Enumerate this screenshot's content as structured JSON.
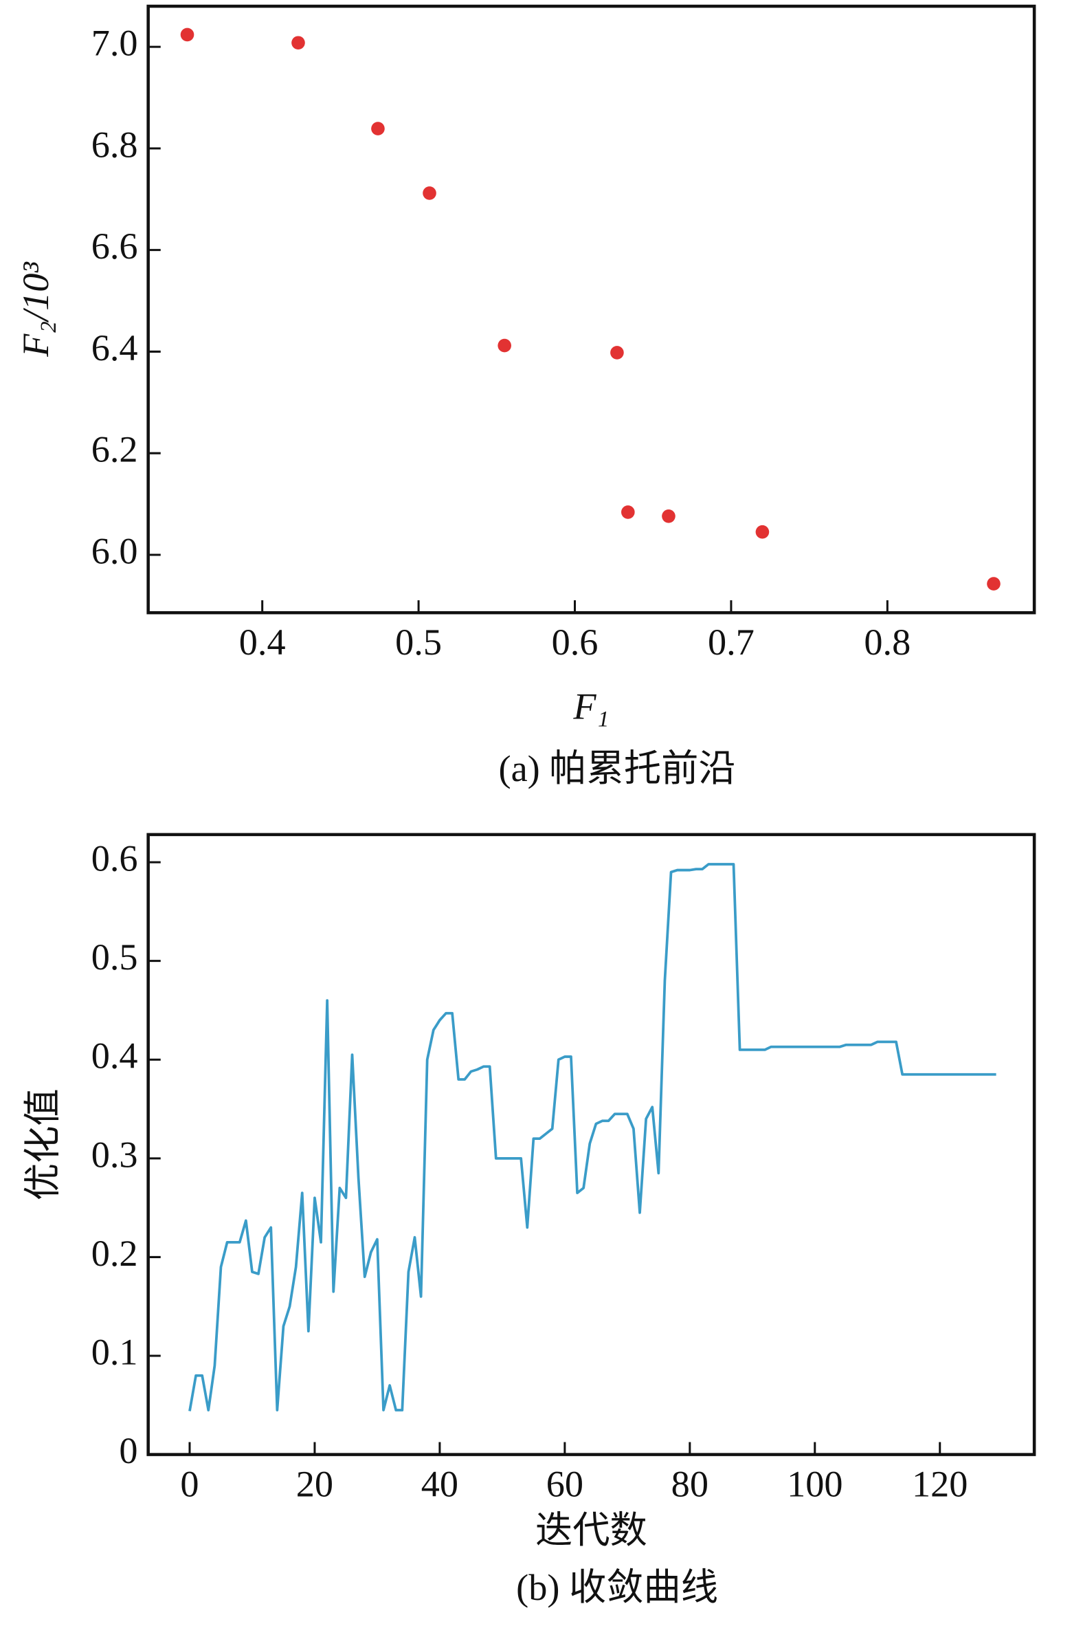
{
  "chart_data": [
    {
      "type": "scatter",
      "x_label": "F₁",
      "y_label": "F₂/10³",
      "caption": "(a) 帕累托前沿",
      "color": "#e23232",
      "x": [
        0.352,
        0.423,
        0.474,
        0.507,
        0.555,
        0.627,
        0.634,
        0.66,
        0.72,
        0.868
      ],
      "values": [
        7.024,
        7.008,
        6.839,
        6.712,
        6.412,
        6.398,
        6.084,
        6.076,
        6.045,
        5.943
      ],
      "xlim": [
        0.327,
        0.894
      ],
      "ylim": [
        5.886,
        7.08
      ],
      "xticks": [
        0.4,
        0.5,
        0.6,
        0.7,
        0.8
      ],
      "yticks": [
        {
          "value": 6.0,
          "label": "6.0"
        },
        6.2,
        6.4,
        6.6,
        6.8,
        {
          "value": 7.0,
          "label": "7.0"
        }
      ]
    },
    {
      "type": "line",
      "x_label": "迭代数",
      "y_label": "优化值",
      "caption": "(b) 收敛曲线",
      "color": "#3a9cc8",
      "x": [
        0,
        1,
        2,
        3,
        4,
        5,
        6,
        7,
        8,
        9,
        10,
        11,
        12,
        13,
        14,
        15,
        16,
        17,
        18,
        19,
        20,
        21,
        22,
        23,
        24,
        25,
        26,
        27,
        28,
        29,
        30,
        31,
        32,
        33,
        34,
        35,
        36,
        37,
        38,
        39,
        40,
        41,
        42,
        43,
        44,
        45,
        46,
        47,
        48,
        49,
        50,
        51,
        52,
        53,
        54,
        55,
        56,
        57,
        58,
        59,
        60,
        61,
        62,
        63,
        64,
        65,
        66,
        67,
        68,
        69,
        70,
        71,
        72,
        73,
        74,
        75,
        76,
        77,
        78,
        79,
        80,
        81,
        82,
        83,
        84,
        85,
        86,
        87,
        88,
        89,
        90,
        91,
        92,
        93,
        94,
        95,
        96,
        97,
        98,
        99,
        100,
        101,
        102,
        103,
        104,
        105,
        106,
        107,
        108,
        109,
        110,
        111,
        112,
        113,
        114,
        115,
        116,
        117,
        118,
        119,
        120,
        121,
        122,
        123,
        124,
        125,
        126,
        127,
        128,
        129
      ],
      "values": [
        0.044,
        0.08,
        0.08,
        0.045,
        0.09,
        0.19,
        0.215,
        0.215,
        0.215,
        0.237,
        0.185,
        0.183,
        0.22,
        0.23,
        0.045,
        0.13,
        0.15,
        0.19,
        0.265,
        0.125,
        0.26,
        0.215,
        0.46,
        0.165,
        0.27,
        0.26,
        0.405,
        0.28,
        0.18,
        0.205,
        0.218,
        0.045,
        0.07,
        0.045,
        0.045,
        0.185,
        0.22,
        0.16,
        0.4,
        0.43,
        0.44,
        0.447,
        0.447,
        0.38,
        0.38,
        0.388,
        0.39,
        0.393,
        0.393,
        0.3,
        0.3,
        0.3,
        0.3,
        0.3,
        0.23,
        0.32,
        0.32,
        0.325,
        0.33,
        0.4,
        0.403,
        0.403,
        0.265,
        0.27,
        0.315,
        0.335,
        0.338,
        0.338,
        0.345,
        0.345,
        0.345,
        0.33,
        0.245,
        0.34,
        0.352,
        0.285,
        0.48,
        0.59,
        0.592,
        0.592,
        0.592,
        0.593,
        0.593,
        0.598,
        0.598,
        0.598,
        0.598,
        0.598,
        0.41,
        0.41,
        0.41,
        0.41,
        0.41,
        0.413,
        0.413,
        0.413,
        0.413,
        0.413,
        0.413,
        0.413,
        0.413,
        0.413,
        0.413,
        0.413,
        0.413,
        0.415,
        0.415,
        0.415,
        0.415,
        0.415,
        0.418,
        0.418,
        0.418,
        0.418,
        0.385,
        0.385,
        0.385,
        0.385,
        0.385,
        0.385,
        0.385,
        0.385,
        0.385,
        0.385,
        0.385,
        0.385,
        0.385,
        0.385,
        0.385,
        0.385
      ],
      "xlim": [
        -6.63,
        135.1
      ],
      "ylim": [
        0,
        0.628
      ],
      "xticks": [
        0,
        20,
        40,
        60,
        80,
        100,
        120
      ],
      "yticks": [
        0,
        0.1,
        0.2,
        0.3,
        0.4,
        0.5,
        0.6
      ]
    }
  ]
}
